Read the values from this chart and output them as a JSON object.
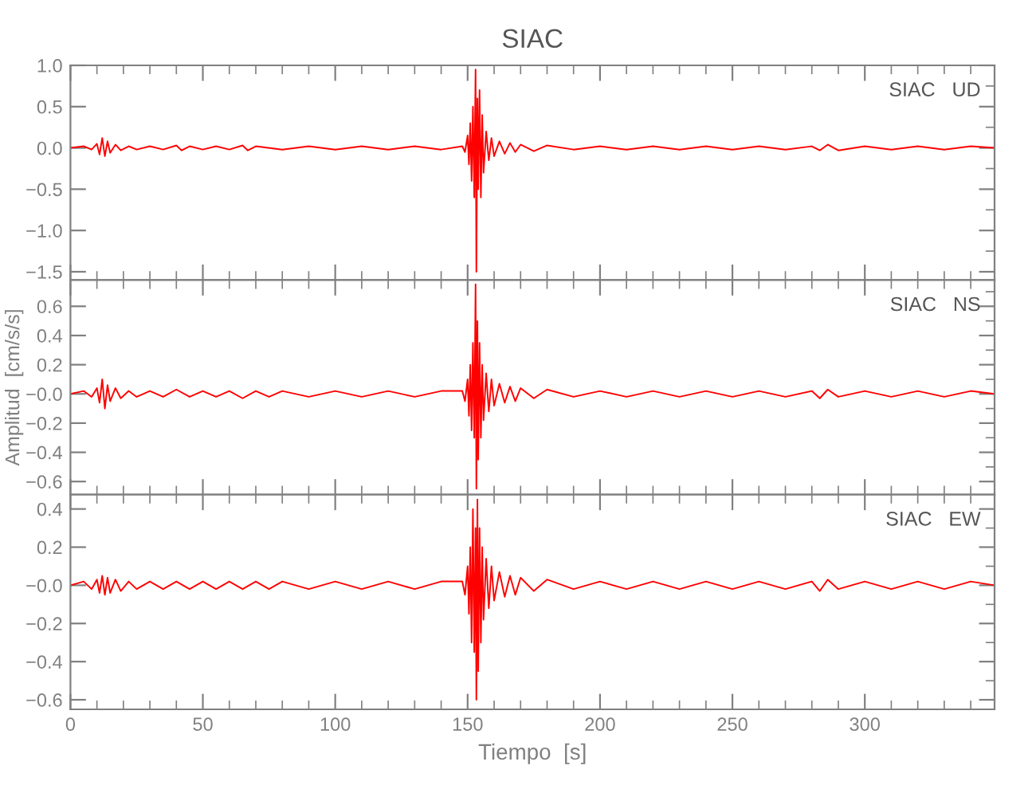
{
  "chart_data": [
    {
      "type": "line",
      "title": "SIAC",
      "annotations": [
        "SIAC   UD"
      ],
      "tick_labels": "y",
      "series": [
        {
          "color": "#ff0000",
          "x": [
            0,
            5,
            8,
            10,
            11,
            12,
            13,
            14,
            15,
            17,
            19,
            22,
            25,
            30,
            35,
            40,
            42,
            45,
            50,
            55,
            60,
            65,
            67,
            70,
            80,
            90,
            100,
            110,
            120,
            130,
            140,
            148,
            149,
            150,
            150.5,
            151,
            151.5,
            152,
            152.5,
            153,
            153.3,
            153.7,
            154,
            154.5,
            155,
            155.5,
            156,
            157,
            158,
            159,
            160,
            162,
            164,
            166,
            168,
            170,
            175,
            180,
            190,
            200,
            210,
            220,
            230,
            240,
            250,
            260,
            270,
            280,
            283,
            286,
            290,
            300,
            310,
            320,
            330,
            340,
            349
          ],
          "values": [
            0,
            0.02,
            -0.02,
            0.05,
            -0.08,
            0.12,
            -0.1,
            0.08,
            -0.06,
            0.04,
            -0.03,
            0.02,
            -0.02,
            0.02,
            -0.02,
            0.03,
            -0.03,
            0.02,
            -0.02,
            0.02,
            -0.02,
            0.03,
            -0.03,
            0.02,
            -0.02,
            0.02,
            -0.02,
            0.02,
            -0.02,
            0.02,
            -0.02,
            0.02,
            -0.05,
            0.15,
            -0.2,
            0.3,
            -0.4,
            0.5,
            -0.6,
            0.95,
            -1.5,
            0.6,
            -0.5,
            0.7,
            -0.6,
            0.4,
            -0.3,
            0.2,
            -0.15,
            0.12,
            -0.1,
            0.08,
            -0.07,
            0.06,
            -0.05,
            0.04,
            -0.04,
            0.03,
            -0.02,
            0.02,
            -0.02,
            0.02,
            -0.02,
            0.02,
            -0.02,
            0.02,
            -0.02,
            0.02,
            -0.03,
            0.04,
            -0.03,
            0.02,
            -0.02,
            0.02,
            -0.02,
            0.02,
            0
          ]
        }
      ],
      "xlim": [
        0,
        349
      ],
      "ylim": [
        -1.6,
        1.0
      ],
      "yticks": [
        {
          "value": 1.0,
          "label": "1.0"
        },
        {
          "value": 0.75,
          "label": null
        },
        {
          "value": 0.5,
          "label": "0.5"
        },
        {
          "value": 0.25,
          "label": null
        },
        {
          "value": 0,
          "label": "0.0"
        },
        {
          "value": -0.25,
          "label": null
        },
        {
          "value": -0.5,
          "label": "−0.5"
        },
        {
          "value": -0.75,
          "label": null
        },
        {
          "value": -1.0,
          "label": "−1.0"
        },
        {
          "value": -1.25,
          "label": null
        },
        {
          "value": -1.5,
          "label": "−1.5"
        }
      ]
    },
    {
      "type": "line",
      "ylabel": "Amplitud  [cm/s/s]",
      "annotations": [
        "SIAC   NS"
      ],
      "tick_labels": "y",
      "series": [
        {
          "color": "#ff0000",
          "x": [
            0,
            5,
            8,
            10,
            11,
            12,
            13,
            14,
            15,
            17,
            19,
            22,
            25,
            30,
            35,
            40,
            45,
            50,
            55,
            60,
            65,
            70,
            75,
            80,
            90,
            100,
            110,
            120,
            130,
            140,
            148,
            149,
            150,
            150.5,
            151,
            151.5,
            152,
            152.5,
            153,
            153.3,
            153.7,
            154,
            154.5,
            155,
            155.5,
            156,
            157,
            158,
            159,
            160,
            162,
            164,
            166,
            168,
            170,
            175,
            180,
            190,
            200,
            210,
            220,
            230,
            240,
            250,
            260,
            270,
            280,
            283,
            286,
            290,
            300,
            310,
            320,
            330,
            340,
            349
          ],
          "values": [
            0,
            0.02,
            -0.02,
            0.04,
            -0.06,
            0.1,
            -0.1,
            0.06,
            -0.05,
            0.04,
            -0.03,
            0.02,
            -0.02,
            0.02,
            -0.02,
            0.03,
            -0.02,
            0.02,
            -0.02,
            0.02,
            -0.03,
            0.02,
            -0.02,
            0.02,
            -0.02,
            0.02,
            -0.02,
            0.02,
            -0.02,
            0.02,
            0.02,
            -0.05,
            0.1,
            -0.15,
            0.2,
            -0.25,
            0.35,
            -0.3,
            0.75,
            -0.65,
            0.5,
            -0.45,
            0.35,
            -0.3,
            0.2,
            -0.18,
            0.14,
            -0.12,
            0.1,
            -0.08,
            0.07,
            -0.06,
            0.05,
            -0.05,
            0.04,
            -0.03,
            0.03,
            -0.02,
            0.02,
            -0.02,
            0.02,
            -0.02,
            0.02,
            -0.02,
            0.02,
            -0.02,
            0.02,
            -0.03,
            0.03,
            -0.02,
            0.02,
            -0.02,
            0.02,
            -0.02,
            0.02,
            0
          ]
        }
      ],
      "xlim": [
        0,
        349
      ],
      "ylim": [
        -0.69,
        0.78
      ],
      "yticks": [
        {
          "value": 0.7,
          "label": null
        },
        {
          "value": 0.6,
          "label": "0.6"
        },
        {
          "value": 0.5,
          "label": null
        },
        {
          "value": 0.4,
          "label": "0.4"
        },
        {
          "value": 0.3,
          "label": null
        },
        {
          "value": 0.2,
          "label": "0.2"
        },
        {
          "value": 0.1,
          "label": null
        },
        {
          "value": 0,
          "label": "−0.0"
        },
        {
          "value": -0.1,
          "label": null
        },
        {
          "value": -0.2,
          "label": "−0.2"
        },
        {
          "value": -0.3,
          "label": null
        },
        {
          "value": -0.4,
          "label": "−0.4"
        },
        {
          "value": -0.5,
          "label": null
        },
        {
          "value": -0.6,
          "label": "−0.6"
        }
      ]
    },
    {
      "type": "line",
      "xlabel": "Tiempo  [s]",
      "annotations": [
        "SIAC   EW"
      ],
      "series": [
        {
          "color": "#ff0000",
          "x": [
            0,
            5,
            8,
            10,
            11,
            12,
            13,
            14,
            15,
            17,
            19,
            22,
            25,
            30,
            35,
            40,
            45,
            50,
            55,
            60,
            65,
            70,
            75,
            80,
            90,
            100,
            110,
            120,
            130,
            140,
            148,
            149,
            150,
            150.5,
            151,
            151.5,
            152,
            152.5,
            153,
            153.3,
            153.7,
            154,
            154.5,
            155,
            155.5,
            156,
            157,
            158,
            159,
            160,
            162,
            164,
            166,
            168,
            170,
            175,
            180,
            190,
            200,
            210,
            220,
            230,
            240,
            250,
            260,
            270,
            280,
            283,
            286,
            290,
            300,
            310,
            320,
            330,
            340,
            349
          ],
          "values": [
            0,
            0.02,
            -0.02,
            0.03,
            -0.04,
            0.05,
            -0.05,
            0.04,
            -0.04,
            0.03,
            -0.03,
            0.02,
            -0.02,
            0.02,
            -0.02,
            0.02,
            -0.02,
            0.02,
            -0.02,
            0.02,
            -0.02,
            0.02,
            -0.02,
            0.02,
            -0.02,
            0.02,
            -0.02,
            0.02,
            -0.02,
            0.02,
            0.02,
            -0.05,
            0.1,
            -0.15,
            0.2,
            -0.3,
            0.4,
            -0.35,
            0.3,
            -0.6,
            0.45,
            -0.45,
            0.3,
            -0.3,
            0.2,
            -0.18,
            0.14,
            -0.12,
            0.1,
            -0.08,
            0.07,
            -0.06,
            0.05,
            -0.05,
            0.04,
            -0.03,
            0.03,
            -0.02,
            0.02,
            -0.02,
            0.02,
            -0.02,
            0.02,
            -0.02,
            0.02,
            -0.02,
            0.02,
            -0.03,
            0.03,
            -0.02,
            0.02,
            -0.02,
            0.02,
            -0.02,
            0.02,
            0
          ]
        }
      ],
      "xlim": [
        0,
        349
      ],
      "xticks": [
        {
          "value": 0,
          "label": "0"
        },
        {
          "value": 10,
          "label": null
        },
        {
          "value": 20,
          "label": null
        },
        {
          "value": 30,
          "label": null
        },
        {
          "value": 40,
          "label": null
        },
        {
          "value": 50,
          "label": "50"
        },
        {
          "value": 60,
          "label": null
        },
        {
          "value": 70,
          "label": null
        },
        {
          "value": 80,
          "label": null
        },
        {
          "value": 90,
          "label": null
        },
        {
          "value": 100,
          "label": "100"
        },
        {
          "value": 110,
          "label": null
        },
        {
          "value": 120,
          "label": null
        },
        {
          "value": 130,
          "label": null
        },
        {
          "value": 140,
          "label": null
        },
        {
          "value": 150,
          "label": "150"
        },
        {
          "value": 160,
          "label": null
        },
        {
          "value": 170,
          "label": null
        },
        {
          "value": 180,
          "label": null
        },
        {
          "value": 190,
          "label": null
        },
        {
          "value": 200,
          "label": "200"
        },
        {
          "value": 210,
          "label": null
        },
        {
          "value": 220,
          "label": null
        },
        {
          "value": 230,
          "label": null
        },
        {
          "value": 240,
          "label": null
        },
        {
          "value": 250,
          "label": "250"
        },
        {
          "value": 260,
          "label": null
        },
        {
          "value": 270,
          "label": null
        },
        {
          "value": 280,
          "label": null
        },
        {
          "value": 290,
          "label": null
        },
        {
          "value": 300,
          "label": "300"
        },
        {
          "value": 310,
          "label": null
        },
        {
          "value": 320,
          "label": null
        },
        {
          "value": 330,
          "label": null
        },
        {
          "value": 340,
          "label": null
        }
      ],
      "ylim": [
        -0.65,
        0.475
      ],
      "yticks": [
        {
          "value": 0.4,
          "label": "0.4"
        },
        {
          "value": 0.3,
          "label": null
        },
        {
          "value": 0.2,
          "label": "0.2"
        },
        {
          "value": 0.1,
          "label": null
        },
        {
          "value": 0,
          "label": "−0.0"
        },
        {
          "value": -0.1,
          "label": null
        },
        {
          "value": -0.2,
          "label": "−0.2"
        },
        {
          "value": -0.3,
          "label": null
        },
        {
          "value": -0.4,
          "label": "−0.4"
        },
        {
          "value": -0.5,
          "label": null
        },
        {
          "value": -0.6,
          "label": "−0.6"
        }
      ]
    }
  ]
}
